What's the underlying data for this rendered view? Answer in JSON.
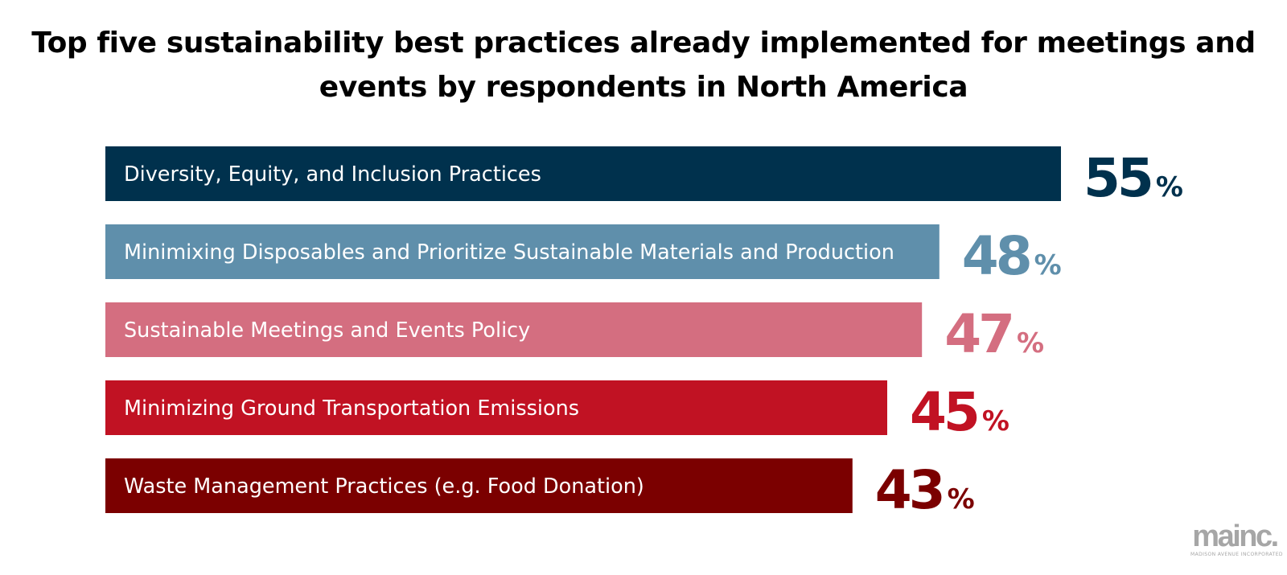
{
  "chart_data": {
    "type": "bar",
    "orientation": "horizontal",
    "title": "Top five sustainability best practices already implemented for meetings and events by respondents in North America",
    "categories": [
      "Diversity, Equity, and Inclusion Practices",
      "Minimixing Disposables and Prioritize Sustainable Materials and Production",
      "Sustainable Meetings and Events Policy",
      "Minimizing Ground Transportation Emissions",
      "Waste Management Practices (e.g. Food Donation)"
    ],
    "values": [
      55,
      48,
      47,
      45,
      43
    ],
    "value_suffix": "%",
    "colors": [
      "#00314d",
      "#5f8fab",
      "#d46e80",
      "#c11223",
      "#7b0000"
    ],
    "label_color": "#ffffff",
    "grid": false,
    "legend": false
  },
  "logo": {
    "main": "mainc.",
    "sub": "MADISON AVENUE INCORPORATED"
  }
}
